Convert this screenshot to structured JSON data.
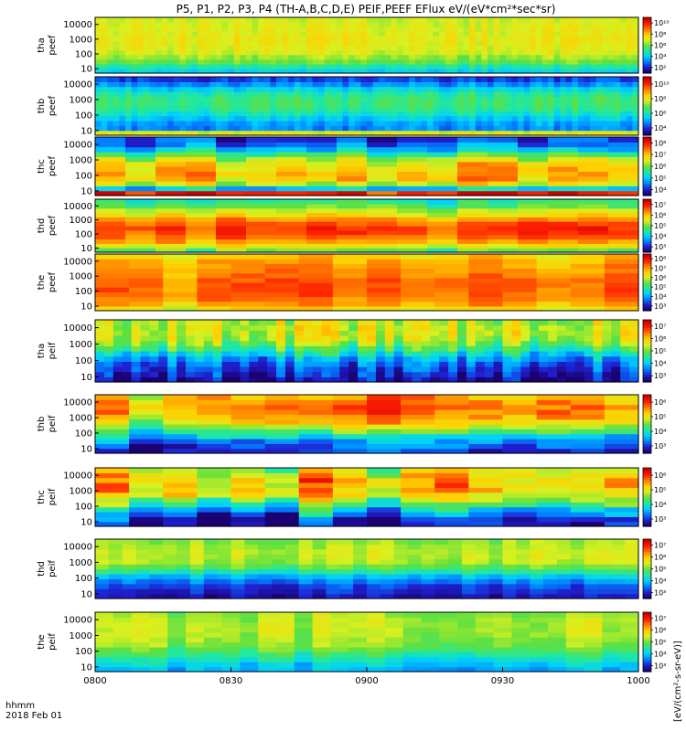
{
  "chart_data": {
    "type": "heatmap",
    "title": "P5, P1, P2, P3, P4 (TH-A,B,C,D,E) PEIF,PEEF EFlux eV/(eV*cm²*sec*sr)",
    "date_label": "2018 Feb 01",
    "time_format_label": "hhmm",
    "x_ticks": [
      "0800",
      "0830",
      "0900",
      "0930",
      "1000"
    ],
    "x_range": [
      "08:00",
      "10:00"
    ],
    "colorbar_unit_label": "[eV/(cm²-s-sr-eV)]",
    "panels": [
      {
        "probe": "tha",
        "species": "peef",
        "ylabel": [
          "tha",
          "peef"
        ],
        "yticks": [
          "10",
          "100",
          "1000",
          "10000"
        ],
        "cbar_ticks": [
          "10²",
          "10⁴",
          "10⁶",
          "10⁸",
          "10¹⁰"
        ]
      },
      {
        "probe": "thb",
        "species": "peef",
        "ylabel": [
          "thb",
          "peef"
        ],
        "yticks": [
          "10",
          "100",
          "1000",
          "10000"
        ],
        "cbar_ticks": [
          "10⁴",
          "10⁶",
          "10⁸",
          "10¹⁰"
        ]
      },
      {
        "probe": "thc",
        "species": "peef",
        "ylabel": [
          "thc",
          "peef"
        ],
        "yticks": [
          "10",
          "100",
          "1000",
          "10000"
        ],
        "cbar_ticks": [
          "10⁴",
          "10⁵",
          "10⁶",
          "10⁷",
          "10⁸"
        ]
      },
      {
        "probe": "thd",
        "species": "peef",
        "ylabel": [
          "thd",
          "peef"
        ],
        "yticks": [
          "10",
          "100",
          "1000",
          "10000"
        ],
        "cbar_ticks": [
          "10³",
          "10⁴",
          "10⁵",
          "10⁶",
          "10⁷"
        ]
      },
      {
        "probe": "the",
        "species": "peef",
        "ylabel": [
          "the",
          "peef"
        ],
        "yticks": [
          "10",
          "100",
          "1000",
          "10000"
        ],
        "cbar_ticks": [
          "10³",
          "10⁴",
          "10⁵",
          "10⁶",
          "10⁷",
          "10⁸"
        ]
      },
      {
        "probe": "tha",
        "species": "peif",
        "ylabel": [
          "tha",
          "peif"
        ],
        "yticks": [
          "10",
          "100",
          "1000",
          "10000"
        ],
        "cbar_ticks": [
          "10³",
          "10⁴",
          "10⁵",
          "10⁶",
          "10⁷"
        ]
      },
      {
        "probe": "thb",
        "species": "peif",
        "ylabel": [
          "thb",
          "peif"
        ],
        "yticks": [
          "10",
          "100",
          "1000",
          "10000"
        ],
        "cbar_ticks": [
          "10³",
          "10⁴",
          "10⁵",
          "10⁶"
        ]
      },
      {
        "probe": "thc",
        "species": "peif",
        "ylabel": [
          "thc",
          "peif"
        ],
        "yticks": [
          "10",
          "100",
          "1000",
          "10000"
        ],
        "cbar_ticks": [
          "10³",
          "10⁴",
          "10⁵",
          "10⁶"
        ]
      },
      {
        "probe": "thd",
        "species": "peif",
        "ylabel": [
          "thd",
          "peif"
        ],
        "yticks": [
          "10",
          "100",
          "1000",
          "10000"
        ],
        "cbar_ticks": [
          "10³",
          "10⁴",
          "10⁵",
          "10⁶",
          "10⁷"
        ]
      },
      {
        "probe": "the",
        "species": "peif",
        "ylabel": [
          "the",
          "peif"
        ],
        "yticks": [
          "10",
          "100",
          "1000",
          "10000"
        ],
        "cbar_ticks": [
          "10³",
          "10⁴",
          "10⁵",
          "10⁶",
          "10⁷"
        ]
      }
    ],
    "colormap": [
      "#1a0070",
      "#2020d0",
      "#0080ff",
      "#00d0ff",
      "#20e8a0",
      "#60e040",
      "#d8f020",
      "#ffd000",
      "#ff8000",
      "#ff2000",
      "#d00000"
    ]
  }
}
